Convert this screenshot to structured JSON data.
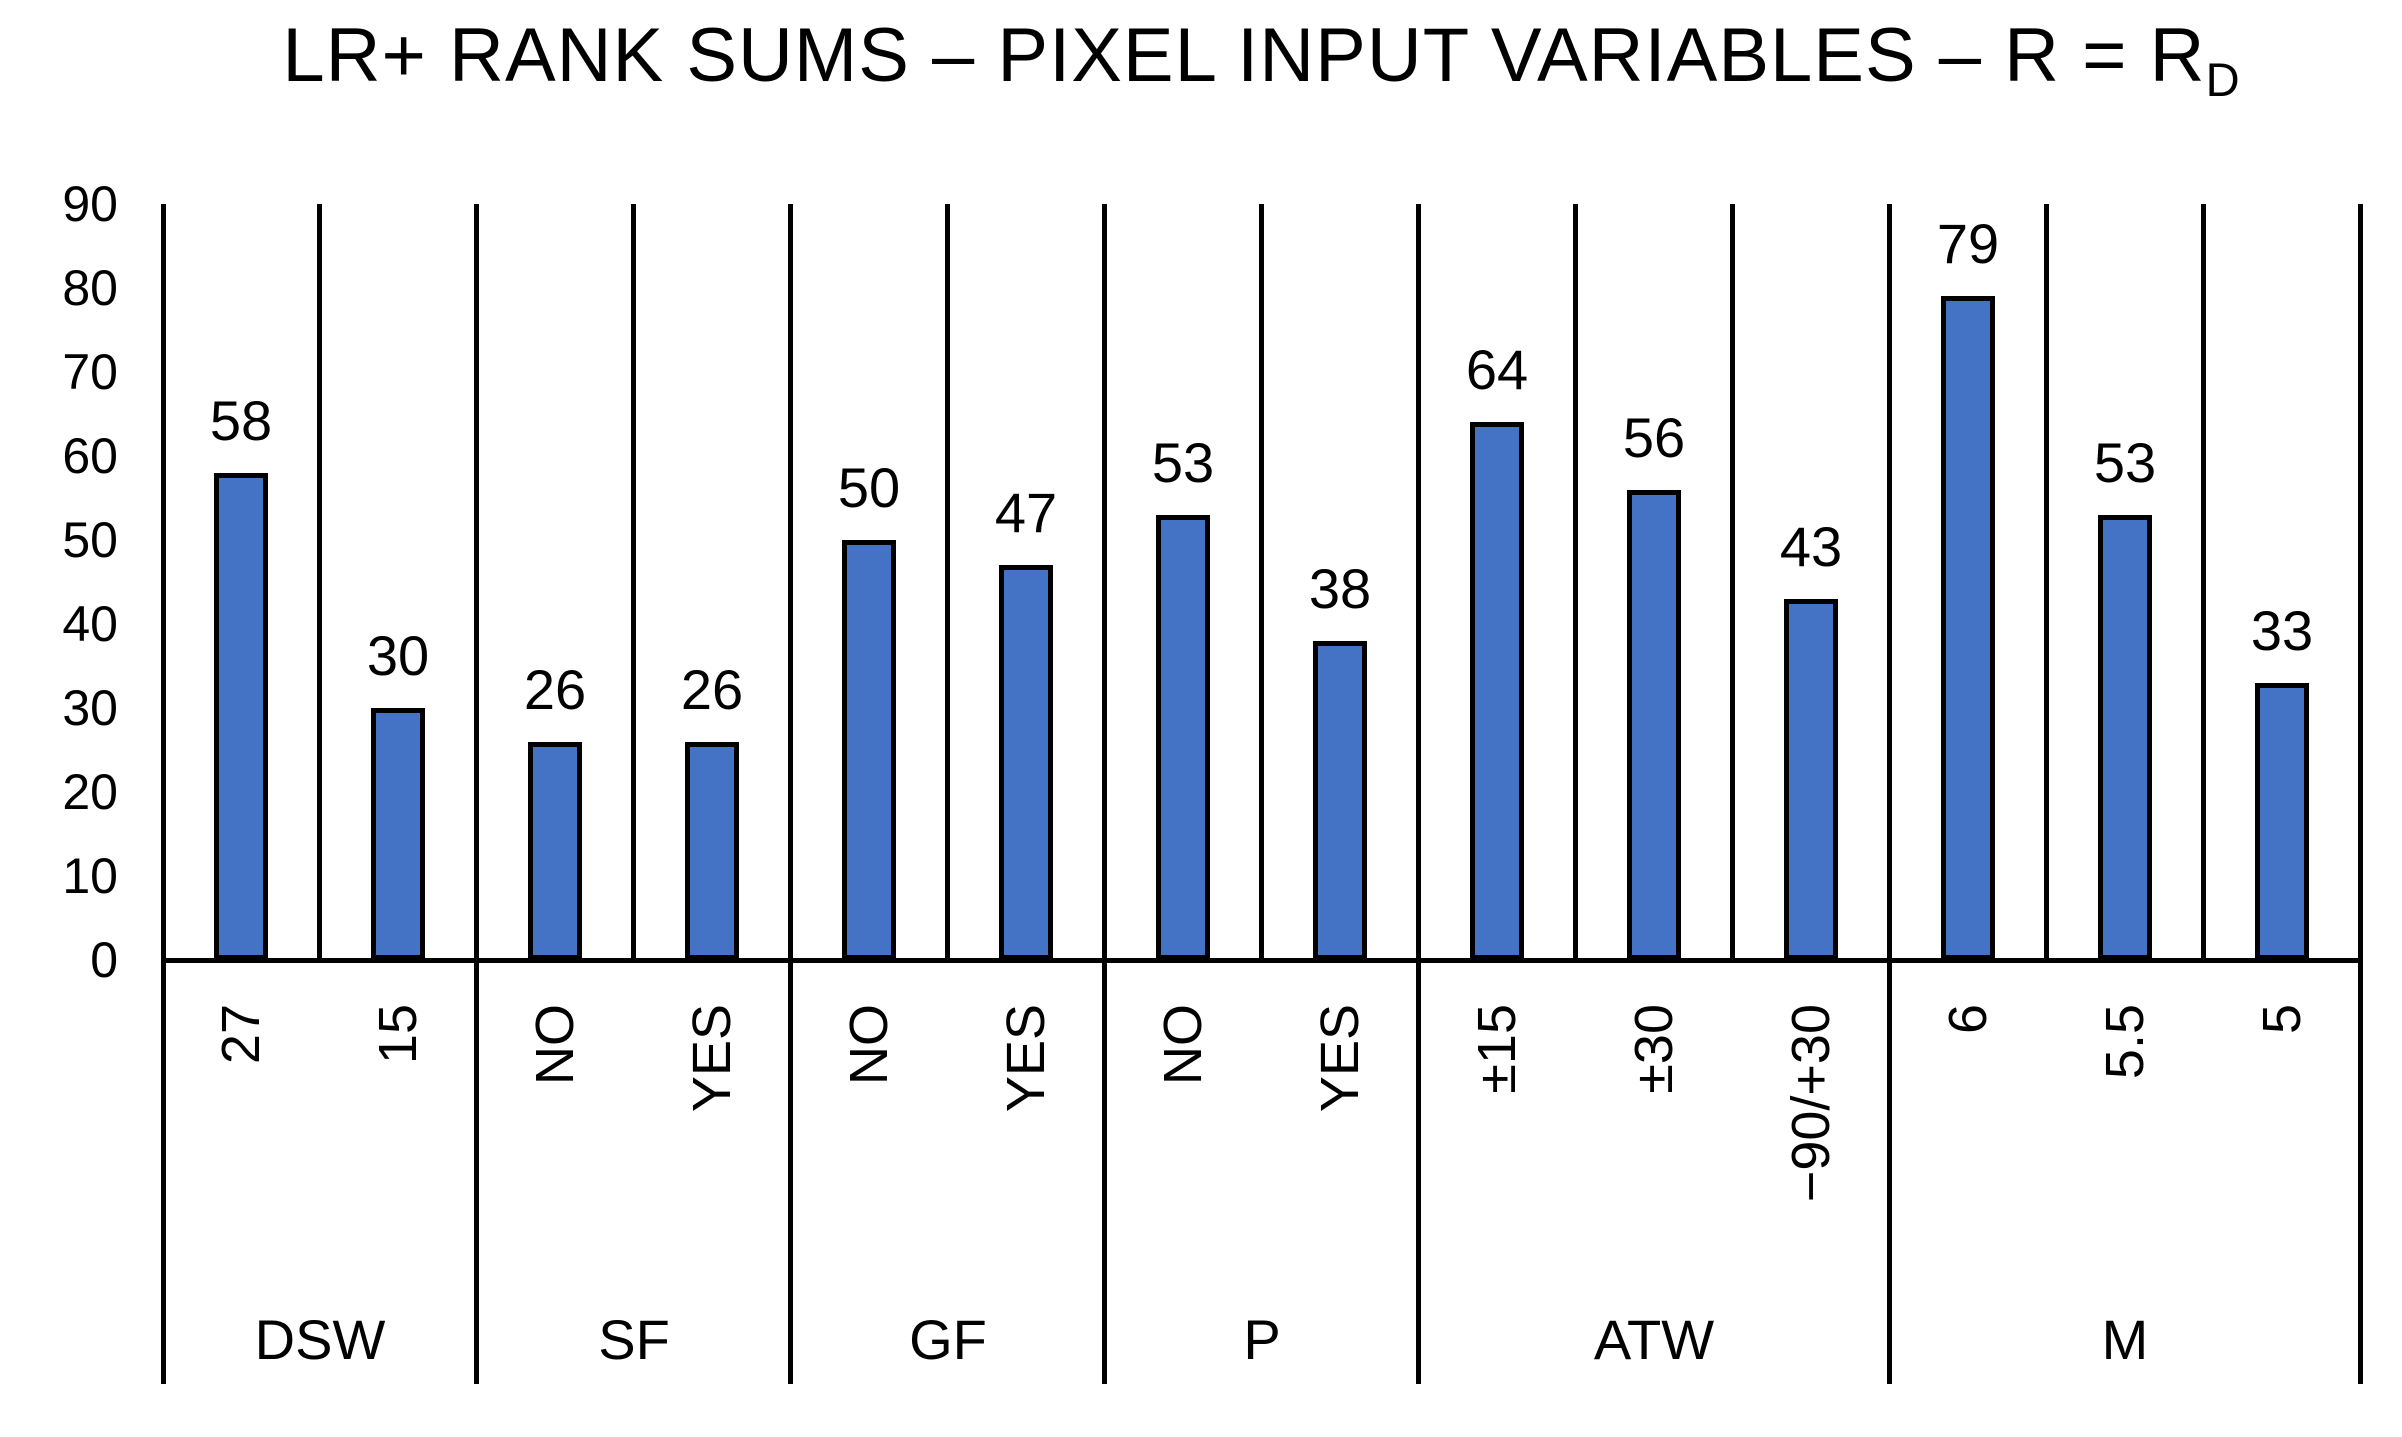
{
  "chart_data": {
    "type": "bar",
    "title": {
      "text": "LR+ RANK SUMS – PIXEL INPUT VARIABLES – R = R",
      "subscript": "D"
    },
    "y_axis": {
      "min": 0,
      "max": 90,
      "ticks": [
        0,
        10,
        20,
        30,
        40,
        50,
        60,
        70,
        80,
        90
      ]
    },
    "gridlines": false,
    "legend": null,
    "bar_value_labels_shown": true,
    "x_tick_rotation_degrees": 90,
    "colors": {
      "bar_fill": "#4472C4",
      "bar_border": "#000000",
      "axis": "#000000",
      "text": "#000000",
      "background": "#FFFFFF"
    },
    "groups": [
      {
        "label": "DSW",
        "bars": [
          {
            "tick": "27",
            "value": 58
          },
          {
            "tick": "15",
            "value": 30
          }
        ]
      },
      {
        "label": "SF",
        "bars": [
          {
            "tick": "NO",
            "value": 26
          },
          {
            "tick": "YES",
            "value": 26
          }
        ]
      },
      {
        "label": "GF",
        "bars": [
          {
            "tick": "NO",
            "value": 50
          },
          {
            "tick": "YES",
            "value": 47
          }
        ]
      },
      {
        "label": "P",
        "bars": [
          {
            "tick": "NO",
            "value": 53
          },
          {
            "tick": "YES",
            "value": 38
          }
        ]
      },
      {
        "label": "ATW",
        "bars": [
          {
            "tick": "±15",
            "value": 64
          },
          {
            "tick": "±30",
            "value": 56
          },
          {
            "tick": "−90/+30",
            "value": 43
          }
        ]
      },
      {
        "label": "M",
        "bars": [
          {
            "tick": "6",
            "value": 79
          },
          {
            "tick": "5.5",
            "value": 53
          },
          {
            "tick": "5",
            "value": 33
          }
        ]
      }
    ]
  }
}
